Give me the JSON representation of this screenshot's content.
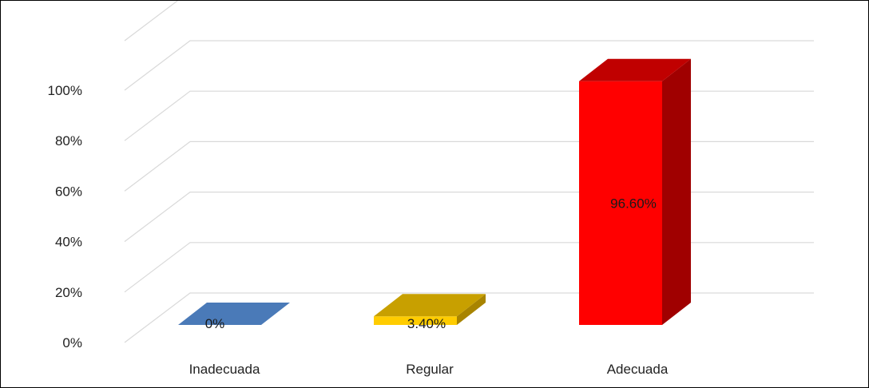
{
  "chart_data": {
    "type": "bar",
    "categories": [
      "Inadecuada",
      "Regular",
      "Adecuada"
    ],
    "values": [
      0,
      3.4,
      96.6
    ],
    "data_labels": [
      "0%",
      "3.40%",
      "96.60%"
    ],
    "y_ticks": [
      "0%",
      "20%",
      "40%",
      "60%",
      "80%",
      "100%"
    ],
    "ylim": [
      0,
      100
    ],
    "grid": true,
    "legend": "none",
    "style": "3d-column",
    "colors": {
      "Inadecuada": {
        "front": "#4f81bd",
        "top": "#4a7ab8",
        "side": "#3b6494"
      },
      "Regular": {
        "front": "#ffcc00",
        "top": "#c8a000",
        "side": "#a88400"
      },
      "Adecuada": {
        "front": "#ff0000",
        "top": "#c00000",
        "side": "#a00000"
      },
      "gridline": "#d9d9d9"
    }
  }
}
